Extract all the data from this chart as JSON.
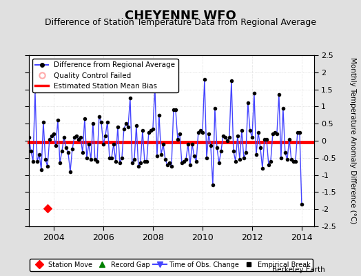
{
  "title": "CHEYENNE WFO",
  "subtitle": "Difference of Station Temperature Data from Regional Average",
  "ylabel": "Monthly Temperature Anomaly Difference (°C)",
  "xlim": [
    2003.0,
    2014.5
  ],
  "ylim": [
    -2.5,
    2.5
  ],
  "yticks": [
    -2.5,
    -2,
    -1.5,
    -1,
    -0.5,
    0,
    0.5,
    1,
    1.5,
    2,
    2.5
  ],
  "xticks": [
    2004,
    2006,
    2008,
    2010,
    2012,
    2014
  ],
  "bias_level": -0.05,
  "station_move_x": 2003.75,
  "station_move_y": -1.97,
  "background_color": "#e0e0e0",
  "plot_bg_color": "#ffffff",
  "line_color": "#4444ff",
  "bias_color": "#ff0000",
  "title_fontsize": 13,
  "subtitle_fontsize": 9,
  "times": [
    2003.0,
    2003.083,
    2003.167,
    2003.25,
    2003.333,
    2003.417,
    2003.5,
    2003.583,
    2003.667,
    2003.75,
    2003.833,
    2003.917,
    2004.0,
    2004.083,
    2004.167,
    2004.25,
    2004.333,
    2004.417,
    2004.5,
    2004.583,
    2004.667,
    2004.75,
    2004.833,
    2004.917,
    2005.0,
    2005.083,
    2005.167,
    2005.25,
    2005.333,
    2005.417,
    2005.5,
    2005.583,
    2005.667,
    2005.75,
    2005.833,
    2005.917,
    2006.0,
    2006.083,
    2006.167,
    2006.25,
    2006.333,
    2006.417,
    2006.5,
    2006.583,
    2006.667,
    2006.75,
    2006.833,
    2006.917,
    2007.0,
    2007.083,
    2007.167,
    2007.25,
    2007.333,
    2007.417,
    2007.5,
    2007.583,
    2007.667,
    2007.75,
    2007.833,
    2007.917,
    2008.0,
    2008.083,
    2008.167,
    2008.25,
    2008.333,
    2008.417,
    2008.5,
    2008.583,
    2008.667,
    2008.75,
    2008.833,
    2008.917,
    2009.0,
    2009.083,
    2009.167,
    2009.25,
    2009.333,
    2009.417,
    2009.5,
    2009.583,
    2009.667,
    2009.75,
    2009.833,
    2009.917,
    2010.0,
    2010.083,
    2010.167,
    2010.25,
    2010.333,
    2010.417,
    2010.5,
    2010.583,
    2010.667,
    2010.75,
    2010.833,
    2010.917,
    2011.0,
    2011.083,
    2011.167,
    2011.25,
    2011.333,
    2011.417,
    2011.5,
    2011.583,
    2011.667,
    2011.75,
    2011.833,
    2011.917,
    2012.0,
    2012.083,
    2012.167,
    2012.25,
    2012.333,
    2012.417,
    2012.5,
    2012.583,
    2012.667,
    2012.75,
    2012.833,
    2012.917,
    2013.0,
    2013.083,
    2013.167,
    2013.25,
    2013.333,
    2013.417,
    2013.5,
    2013.583,
    2013.667,
    2013.75,
    2013.833,
    2013.917,
    2014.0
  ],
  "values": [
    0.1,
    -0.3,
    -0.6,
    1.45,
    -0.6,
    -0.4,
    -0.85,
    0.55,
    -0.55,
    -0.75,
    0.05,
    0.15,
    0.2,
    -0.15,
    0.6,
    -0.65,
    -0.3,
    0.1,
    -0.2,
    -0.35,
    -0.9,
    -0.25,
    0.1,
    0.15,
    0.05,
    0.1,
    -0.35,
    0.65,
    -0.5,
    -0.1,
    -0.55,
    0.5,
    -0.55,
    -0.6,
    0.7,
    0.55,
    -0.1,
    0.15,
    0.55,
    -0.5,
    -0.5,
    -0.1,
    -0.6,
    0.4,
    -0.65,
    -0.5,
    0.35,
    0.5,
    0.4,
    1.25,
    -0.65,
    -0.55,
    0.45,
    -0.75,
    -0.65,
    0.3,
    -0.6,
    -0.6,
    0.25,
    0.3,
    0.35,
    1.55,
    -0.45,
    0.75,
    -0.4,
    -0.1,
    -0.55,
    -0.7,
    -0.65,
    -0.75,
    0.9,
    0.9,
    0.05,
    0.2,
    -0.65,
    -0.6,
    -0.55,
    -0.1,
    -0.7,
    -0.1,
    -0.45,
    -0.6,
    0.25,
    0.3,
    0.25,
    1.8,
    -0.5,
    0.2,
    -0.15,
    -1.3,
    0.95,
    -0.2,
    -0.65,
    -0.3,
    0.15,
    0.1,
    0.0,
    0.1,
    1.75,
    -0.3,
    -0.6,
    0.15,
    -0.55,
    0.3,
    -0.5,
    -0.35,
    1.1,
    0.3,
    0.1,
    1.4,
    -0.4,
    0.25,
    -0.2,
    -0.8,
    0.05,
    0.05,
    -0.7,
    -0.6,
    0.2,
    0.25,
    0.2,
    1.35,
    -0.5,
    0.95,
    -0.35,
    -0.55,
    0.05,
    -0.55,
    -0.6,
    -0.6,
    0.25,
    0.25,
    -1.85
  ]
}
